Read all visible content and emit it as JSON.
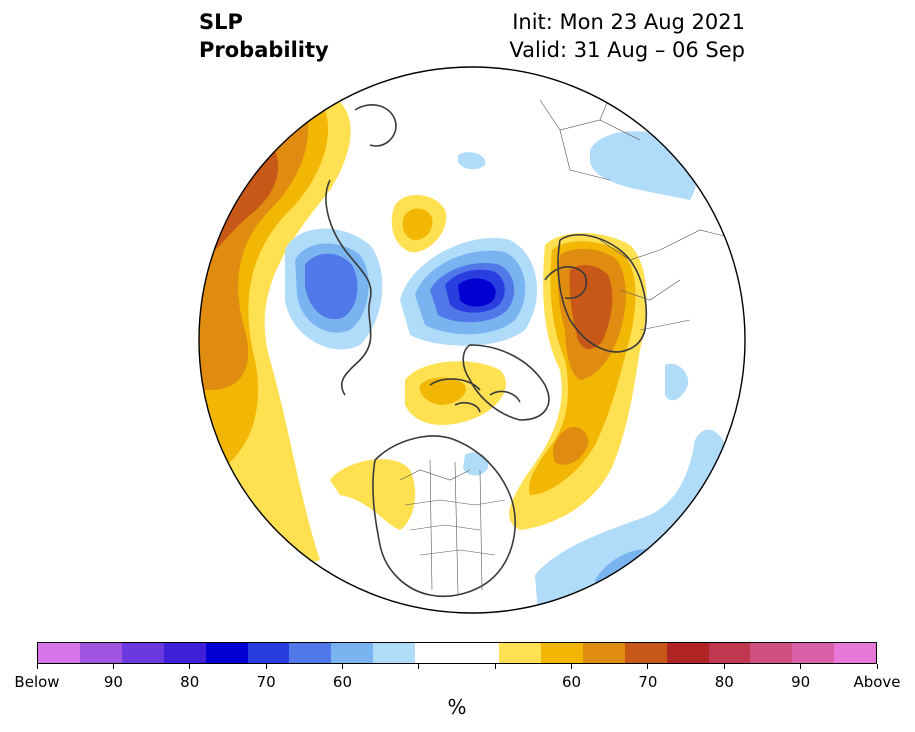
{
  "header": {
    "variable": "SLP",
    "product": "Probability",
    "init": "Init: Mon 23 Aug 2021",
    "valid": "Valid: 31 Aug – 06 Sep"
  },
  "colorbar": {
    "unit": "%",
    "colors": [
      "#d575e8",
      "#a055e0",
      "#6a3adf",
      "#3f1fd8",
      "#0000d2",
      "#2a3ee0",
      "#5078e8",
      "#7ab4f0",
      "#b0dcfa",
      "#ffffff",
      "#ffffff",
      "#ffe050",
      "#f2b705",
      "#e08c10",
      "#c85818",
      "#b02424",
      "#c03850",
      "#d05080",
      "#da60a8",
      "#e878d8"
    ],
    "tick_labels": [
      "Below",
      "90",
      "80",
      "70",
      "60",
      "",
      "",
      "60",
      "70",
      "80",
      "90",
      "Above"
    ]
  },
  "map": {
    "projection": "north-polar-stereographic",
    "below_normal_color": "#0000d2",
    "above_normal_color": "#c85818"
  }
}
